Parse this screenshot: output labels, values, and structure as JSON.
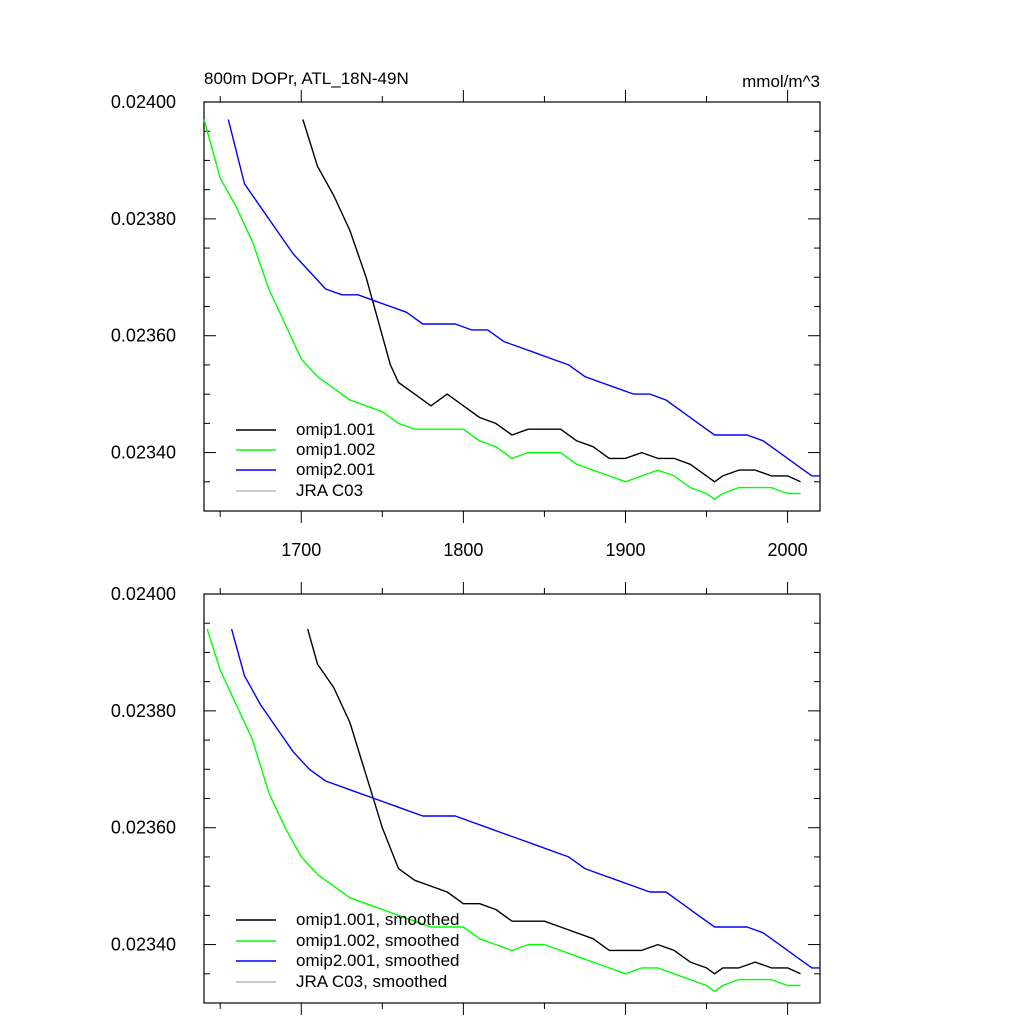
{
  "colors": {
    "omip1_001": "#000000",
    "omip1_002": "#00ff00",
    "omip2_001": "#0000ff",
    "jra_c03": "#bbbbbb"
  },
  "chart_data": [
    {
      "type": "line",
      "title": "800m DOPr, ATL_18N-49N",
      "units_label": "mmol/m^3",
      "xlim": [
        1640,
        2020
      ],
      "ylim": [
        0.0233,
        0.024
      ],
      "x_ticks": [
        1700,
        1800,
        1900,
        2000
      ],
      "x_tick_labels": [
        "1700",
        "1800",
        "1900",
        "2000"
      ],
      "y_ticks": [
        0.0234,
        0.0236,
        0.0238,
        0.024
      ],
      "y_tick_labels": [
        "0.02340",
        "0.02360",
        "0.02380",
        "0.02400"
      ],
      "legend": [
        "omip1.001",
        "omip1.002",
        "omip2.001",
        "JRA C03"
      ],
      "series": [
        {
          "name": "omip1.001",
          "color": "#000000",
          "x": [
            1701,
            1710,
            1720,
            1730,
            1740,
            1750,
            1755,
            1760,
            1770,
            1780,
            1790,
            1800,
            1810,
            1820,
            1830,
            1840,
            1850,
            1860,
            1870,
            1880,
            1890,
            1900,
            1910,
            1920,
            1930,
            1940,
            1950,
            1955,
            1960,
            1970,
            1980,
            1990,
            2000,
            2008
          ],
          "values": [
            0.02397,
            0.02389,
            0.02384,
            0.02378,
            0.0237,
            0.0236,
            0.02355,
            0.02352,
            0.0235,
            0.02348,
            0.0235,
            0.02348,
            0.02346,
            0.02345,
            0.02343,
            0.02344,
            0.02344,
            0.02344,
            0.02342,
            0.02341,
            0.02339,
            0.02339,
            0.0234,
            0.02339,
            0.02339,
            0.02338,
            0.02336,
            0.02335,
            0.02336,
            0.02337,
            0.02337,
            0.02336,
            0.02336,
            0.02335
          ]
        },
        {
          "name": "omip1.002",
          "color": "#00ff00",
          "x": [
            1640,
            1650,
            1660,
            1670,
            1680,
            1690,
            1700,
            1710,
            1720,
            1730,
            1740,
            1750,
            1760,
            1770,
            1780,
            1790,
            1800,
            1810,
            1820,
            1830,
            1840,
            1850,
            1860,
            1870,
            1880,
            1890,
            1900,
            1910,
            1920,
            1930,
            1940,
            1950,
            1955,
            1960,
            1970,
            1980,
            1990,
            2000,
            2008
          ],
          "values": [
            0.02397,
            0.02387,
            0.02382,
            0.02376,
            0.02368,
            0.02362,
            0.02356,
            0.02353,
            0.02351,
            0.02349,
            0.02348,
            0.02347,
            0.02345,
            0.02344,
            0.02344,
            0.02344,
            0.02344,
            0.02342,
            0.02341,
            0.02339,
            0.0234,
            0.0234,
            0.0234,
            0.02338,
            0.02337,
            0.02336,
            0.02335,
            0.02336,
            0.02337,
            0.02336,
            0.02334,
            0.02333,
            0.02332,
            0.02333,
            0.02334,
            0.02334,
            0.02334,
            0.02333,
            0.02333
          ]
        },
        {
          "name": "omip2.001",
          "color": "#0000ff",
          "x": [
            1655,
            1665,
            1675,
            1685,
            1695,
            1705,
            1715,
            1725,
            1735,
            1745,
            1755,
            1765,
            1775,
            1785,
            1795,
            1805,
            1815,
            1825,
            1835,
            1845,
            1855,
            1865,
            1875,
            1885,
            1895,
            1905,
            1915,
            1925,
            1935,
            1945,
            1955,
            1965,
            1975,
            1985,
            1995,
            2005,
            2015,
            2020
          ],
          "values": [
            0.02397,
            0.02386,
            0.02382,
            0.02378,
            0.02374,
            0.02371,
            0.02368,
            0.02367,
            0.02367,
            0.02366,
            0.02365,
            0.02364,
            0.02362,
            0.02362,
            0.02362,
            0.02361,
            0.02361,
            0.02359,
            0.02358,
            0.02357,
            0.02356,
            0.02355,
            0.02353,
            0.02352,
            0.02351,
            0.0235,
            0.0235,
            0.02349,
            0.02347,
            0.02345,
            0.02343,
            0.02343,
            0.02343,
            0.02342,
            0.0234,
            0.02338,
            0.02336,
            0.02336
          ]
        },
        {
          "name": "JRA C03",
          "color": "#bbbbbb",
          "x": [],
          "values": []
        }
      ]
    },
    {
      "type": "line",
      "title": "",
      "units_label": "",
      "xlim": [
        1640,
        2020
      ],
      "ylim": [
        0.0233,
        0.024
      ],
      "x_ticks": [
        1700,
        1800,
        1900,
        2000
      ],
      "x_tick_labels": [],
      "y_ticks": [
        0.0234,
        0.0236,
        0.0238,
        0.024
      ],
      "y_tick_labels": [
        "0.02340",
        "0.02360",
        "0.02380",
        "0.02400"
      ],
      "legend": [
        "omip1.001, smoothed",
        "omip1.002, smoothed",
        "omip2.001, smoothed",
        "JRA C03, smoothed"
      ],
      "series": [
        {
          "name": "omip1.001, smoothed",
          "color": "#000000",
          "x": [
            1704,
            1710,
            1720,
            1730,
            1740,
            1750,
            1760,
            1770,
            1780,
            1790,
            1800,
            1810,
            1820,
            1830,
            1840,
            1850,
            1860,
            1870,
            1880,
            1890,
            1900,
            1910,
            1920,
            1930,
            1940,
            1950,
            1955,
            1960,
            1970,
            1980,
            1990,
            2000,
            2008
          ],
          "values": [
            0.02394,
            0.02388,
            0.02384,
            0.02378,
            0.02369,
            0.0236,
            0.02353,
            0.02351,
            0.0235,
            0.02349,
            0.02347,
            0.02347,
            0.02346,
            0.02344,
            0.02344,
            0.02344,
            0.02343,
            0.02342,
            0.02341,
            0.02339,
            0.02339,
            0.02339,
            0.0234,
            0.02339,
            0.02337,
            0.02336,
            0.02335,
            0.02336,
            0.02336,
            0.02337,
            0.02336,
            0.02336,
            0.02335
          ]
        },
        {
          "name": "omip1.002, smoothed",
          "color": "#00ff00",
          "x": [
            1642,
            1650,
            1660,
            1670,
            1680,
            1690,
            1700,
            1710,
            1720,
            1730,
            1740,
            1750,
            1760,
            1770,
            1780,
            1790,
            1800,
            1810,
            1820,
            1830,
            1840,
            1850,
            1860,
            1870,
            1880,
            1890,
            1900,
            1910,
            1920,
            1930,
            1940,
            1950,
            1955,
            1960,
            1970,
            1980,
            1990,
            2000,
            2008
          ],
          "values": [
            0.02394,
            0.02387,
            0.02381,
            0.02375,
            0.02366,
            0.0236,
            0.02355,
            0.02352,
            0.0235,
            0.02348,
            0.02347,
            0.02346,
            0.02345,
            0.02344,
            0.02343,
            0.02343,
            0.02343,
            0.02341,
            0.0234,
            0.02339,
            0.0234,
            0.0234,
            0.02339,
            0.02338,
            0.02337,
            0.02336,
            0.02335,
            0.02336,
            0.02336,
            0.02335,
            0.02334,
            0.02333,
            0.02332,
            0.02333,
            0.02334,
            0.02334,
            0.02334,
            0.02333,
            0.02333
          ]
        },
        {
          "name": "omip2.001, smoothed",
          "color": "#0000ff",
          "x": [
            1657,
            1665,
            1675,
            1685,
            1695,
            1705,
            1715,
            1725,
            1735,
            1745,
            1755,
            1765,
            1775,
            1785,
            1795,
            1805,
            1815,
            1825,
            1835,
            1845,
            1855,
            1865,
            1875,
            1885,
            1895,
            1905,
            1915,
            1925,
            1935,
            1945,
            1955,
            1965,
            1975,
            1985,
            1995,
            2005,
            2015,
            2020
          ],
          "values": [
            0.02394,
            0.02386,
            0.02381,
            0.02377,
            0.02373,
            0.0237,
            0.02368,
            0.02367,
            0.02366,
            0.02365,
            0.02364,
            0.02363,
            0.02362,
            0.02362,
            0.02362,
            0.02361,
            0.0236,
            0.02359,
            0.02358,
            0.02357,
            0.02356,
            0.02355,
            0.02353,
            0.02352,
            0.02351,
            0.0235,
            0.02349,
            0.02349,
            0.02347,
            0.02345,
            0.02343,
            0.02343,
            0.02343,
            0.02342,
            0.0234,
            0.02338,
            0.02336,
            0.02336
          ]
        },
        {
          "name": "JRA C03, smoothed",
          "color": "#bbbbbb",
          "x": [],
          "values": []
        }
      ]
    }
  ]
}
